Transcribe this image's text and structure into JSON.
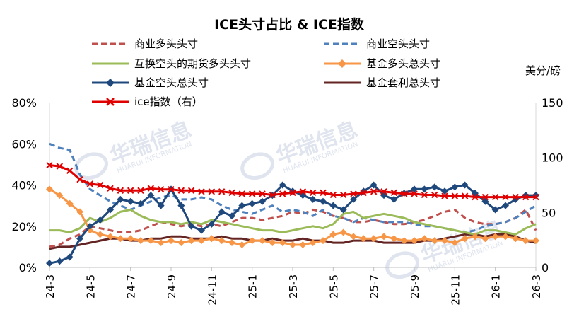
{
  "chart_data": {
    "type": "line",
    "title": "ICE头寸占比 & ICE指数",
    "y_left": {
      "ticks": [
        "0%",
        "20%",
        "40%",
        "60%",
        "80%"
      ],
      "range": [
        0,
        80
      ]
    },
    "y_right": {
      "ticks": [
        "0",
        "50",
        "100",
        "150"
      ],
      "range": [
        0,
        150
      ],
      "unit": "美分/磅"
    },
    "x_ticks": [
      "24-3",
      "24-5",
      "24-7",
      "24-9",
      "24-11",
      "25-1",
      "25-3",
      "25-5",
      "25-7",
      "25-9",
      "25-11",
      "26-1",
      "26-3"
    ],
    "x_tick_positions": [
      0,
      2,
      4,
      6,
      8,
      10,
      12,
      14,
      16,
      18,
      20,
      22,
      24
    ],
    "watermark": {
      "brand": "华瑞信息",
      "sub": "HUARUI INFORMATION"
    },
    "series": [
      {
        "name": "商业多头头寸",
        "axis": "left",
        "color": "#c0504d",
        "style": "dash",
        "x": [
          0,
          0.5,
          1,
          1.5,
          2,
          2.5,
          3,
          3.5,
          4,
          4.5,
          5,
          5.5,
          6,
          6.5,
          7,
          7.5,
          8,
          8.5,
          9,
          9.5,
          10,
          10.5,
          11,
          11.5,
          12,
          12.5,
          13,
          13.5,
          14,
          14.5,
          15,
          15.5,
          16,
          16.5,
          17,
          17.5,
          18,
          18.5,
          19,
          19.5,
          20,
          20.5,
          21,
          21.5,
          22,
          22.5,
          23,
          23.5,
          24
        ],
        "y": [
          10,
          11,
          14,
          16,
          20,
          19,
          18,
          17,
          17,
          18,
          20,
          22,
          21,
          20,
          21,
          20,
          21,
          20,
          22,
          24,
          24,
          23,
          24,
          25,
          27,
          26,
          28,
          27,
          25,
          24,
          22,
          22,
          23,
          22,
          21,
          21,
          22,
          23,
          25,
          27,
          28,
          24,
          22,
          21,
          21,
          22,
          24,
          28,
          18
        ]
      },
      {
        "name": "商业空头头寸",
        "axis": "left",
        "color": "#4f81bd",
        "style": "dash",
        "x": [
          0,
          0.5,
          1,
          1.5,
          2,
          2.5,
          3,
          3.5,
          4,
          4.5,
          5,
          5.5,
          6,
          6.5,
          7,
          7.5,
          8,
          8.5,
          9,
          9.5,
          10,
          10.5,
          11,
          11.5,
          12,
          12.5,
          13,
          13.5,
          14,
          14.5,
          15,
          15.5,
          16,
          16.5,
          17,
          17.5,
          18,
          18.5,
          19,
          19.5,
          20,
          20.5,
          21,
          21.5,
          22,
          22.5,
          23,
          23.5,
          24
        ],
        "y": [
          60,
          58,
          57,
          45,
          38,
          35,
          32,
          30,
          28,
          30,
          32,
          34,
          35,
          33,
          33,
          34,
          33,
          30,
          28,
          27,
          26,
          28,
          30,
          27,
          28,
          27,
          25,
          28,
          25,
          24,
          22,
          24,
          23,
          22,
          22,
          22,
          21,
          20,
          20,
          19,
          18,
          17,
          18,
          20,
          21,
          22,
          24,
          27,
          30
        ]
      },
      {
        "name": "互换空头的期货多头头寸",
        "axis": "left",
        "color": "#9bbb59",
        "style": "solid",
        "x": [
          0,
          0.5,
          1,
          1.5,
          2,
          2.5,
          3,
          3.5,
          4,
          4.5,
          5,
          5.5,
          6,
          6.5,
          7,
          7.5,
          8,
          8.5,
          9,
          9.5,
          10,
          10.5,
          11,
          11.5,
          12,
          12.5,
          13,
          13.5,
          14,
          14.5,
          15,
          15.5,
          16,
          16.5,
          17,
          17.5,
          18,
          18.5,
          19,
          19.5,
          20,
          20.5,
          21,
          21.5,
          22,
          22.5,
          23,
          23.5,
          24
        ],
        "y": [
          18,
          18,
          17,
          19,
          24,
          22,
          24,
          27,
          28,
          25,
          23,
          22,
          22,
          21,
          22,
          21,
          23,
          22,
          21,
          20,
          19,
          18,
          18,
          17,
          18,
          19,
          20,
          19,
          21,
          26,
          27,
          24,
          25,
          26,
          25,
          24,
          22,
          21,
          20,
          19,
          18,
          17,
          16,
          18,
          18,
          17,
          16,
          19,
          21
        ]
      },
      {
        "name": "基金多头总头寸",
        "axis": "left",
        "color": "#f79646",
        "style": "solid",
        "marker": "diamond",
        "x": [
          0,
          0.5,
          1,
          1.5,
          2,
          2.5,
          3,
          3.5,
          4,
          4.5,
          5,
          5.5,
          6,
          6.5,
          7,
          7.5,
          8,
          8.5,
          9,
          9.5,
          10,
          10.5,
          11,
          11.5,
          12,
          12.5,
          13,
          13.5,
          14,
          14.5,
          15,
          15.5,
          16,
          16.5,
          17,
          17.5,
          18,
          18.5,
          19,
          19.5,
          20,
          20.5,
          21,
          21.5,
          22,
          22.5,
          23,
          23.5,
          24
        ],
        "y": [
          38,
          35,
          31,
          27,
          18,
          16,
          15,
          14,
          14,
          13,
          13,
          12,
          13,
          12,
          13,
          13,
          14,
          13,
          12,
          11,
          13,
          13,
          12,
          12,
          11,
          11,
          12,
          13,
          16,
          17,
          15,
          14,
          14,
          15,
          14,
          13,
          13,
          14,
          13,
          13,
          12,
          14,
          15,
          14,
          15,
          15,
          14,
          13,
          13
        ]
      },
      {
        "name": "基金空头总头寸",
        "axis": "left",
        "color": "#1f497d",
        "style": "solid",
        "marker": "diamond",
        "x": [
          0,
          0.5,
          1,
          1.5,
          2,
          2.5,
          3,
          3.5,
          4,
          4.5,
          5,
          5.5,
          6,
          6.5,
          7,
          7.5,
          8,
          8.5,
          9,
          9.5,
          10,
          10.5,
          11,
          11.5,
          12,
          12.5,
          13,
          13.5,
          14,
          14.5,
          15,
          15.5,
          16,
          16.5,
          17,
          17.5,
          18,
          18.5,
          19,
          19.5,
          20,
          20.5,
          21,
          21.5,
          22,
          22.5,
          23,
          23.5,
          24
        ],
        "y": [
          2,
          3,
          5,
          14,
          20,
          23,
          28,
          33,
          32,
          31,
          35,
          30,
          38,
          30,
          20,
          18,
          21,
          27,
          25,
          30,
          31,
          32,
          35,
          40,
          37,
          35,
          33,
          32,
          30,
          28,
          33,
          37,
          40,
          35,
          33,
          36,
          38,
          38,
          39,
          37,
          39,
          40,
          36,
          32,
          28,
          30,
          33,
          35,
          35
        ]
      },
      {
        "name": "基金套利总头寸",
        "axis": "left",
        "color": "#632523",
        "style": "solid",
        "x": [
          0,
          0.5,
          1,
          1.5,
          2,
          2.5,
          3,
          3.5,
          4,
          4.5,
          5,
          5.5,
          6,
          6.5,
          7,
          7.5,
          8,
          8.5,
          9,
          9.5,
          10,
          10.5,
          11,
          11.5,
          12,
          12.5,
          13,
          13.5,
          14,
          14.5,
          15,
          15.5,
          16,
          16.5,
          17,
          17.5,
          18,
          18.5,
          19,
          19.5,
          20,
          20.5,
          21,
          21.5,
          22,
          22.5,
          23,
          23.5,
          24
        ],
        "y": [
          9,
          10,
          10,
          11,
          12,
          13,
          14,
          14,
          13,
          13,
          14,
          14,
          15,
          15,
          14,
          14,
          14,
          15,
          14,
          14,
          13,
          13,
          14,
          13,
          13,
          14,
          13,
          13,
          12,
          12,
          13,
          13,
          13,
          12,
          12,
          12,
          12,
          13,
          13,
          14,
          15,
          16,
          16,
          15,
          16,
          16,
          15,
          13,
          12
        ]
      },
      {
        "name": "ice指数（右）",
        "axis": "right",
        "color": "#e00000",
        "style": "solid",
        "marker": "x",
        "x": [
          0,
          0.5,
          1,
          1.5,
          2,
          2.5,
          3,
          3.5,
          4,
          4.5,
          5,
          5.5,
          6,
          6.5,
          7,
          7.5,
          8,
          8.5,
          9,
          9.5,
          10,
          10.5,
          11,
          11.5,
          12,
          12.5,
          13,
          13.5,
          14,
          14.5,
          15,
          15.5,
          16,
          16.5,
          17,
          17.5,
          18,
          18.5,
          19,
          19.5,
          20,
          20.5,
          21,
          21.5,
          22,
          22.5,
          23,
          23.5,
          24
        ],
        "y": [
          93,
          92,
          88,
          80,
          76,
          75,
          72,
          70,
          70,
          70,
          72,
          71,
          71,
          70,
          70,
          69,
          69,
          69,
          68,
          67,
          67,
          67,
          66,
          67,
          68,
          69,
          68,
          68,
          66,
          66,
          67,
          68,
          69,
          69,
          68,
          67,
          67,
          66,
          66,
          65,
          65,
          65,
          64,
          64,
          64,
          64,
          64,
          64,
          64
        ]
      }
    ],
    "legend_layout": "two-column-top",
    "grid": false
  }
}
